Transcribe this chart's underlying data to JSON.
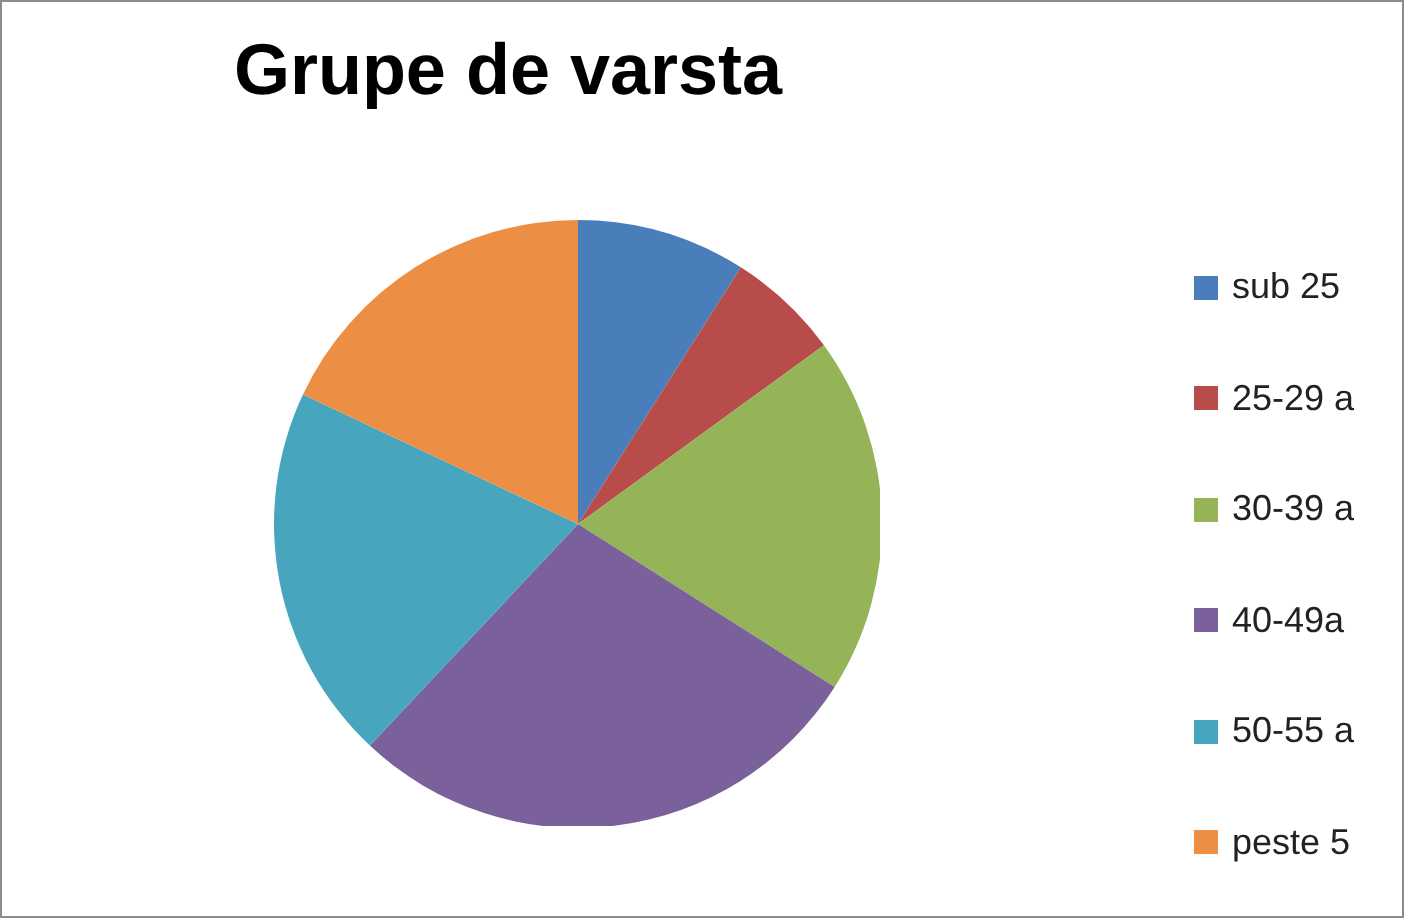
{
  "chart_data": {
    "type": "pie",
    "title": "Grupe de varsta",
    "categories": [
      "sub 25",
      "25-29 a",
      "30-39 a",
      "40-49a",
      "50-55 a",
      "peste 5"
    ],
    "values": [
      9,
      6,
      19,
      28,
      20,
      18
    ],
    "colors": [
      "#4a7ebb",
      "#b84c4a",
      "#94b457",
      "#7b619c",
      "#48a5be",
      "#ec8f45"
    ],
    "legend": "right"
  }
}
